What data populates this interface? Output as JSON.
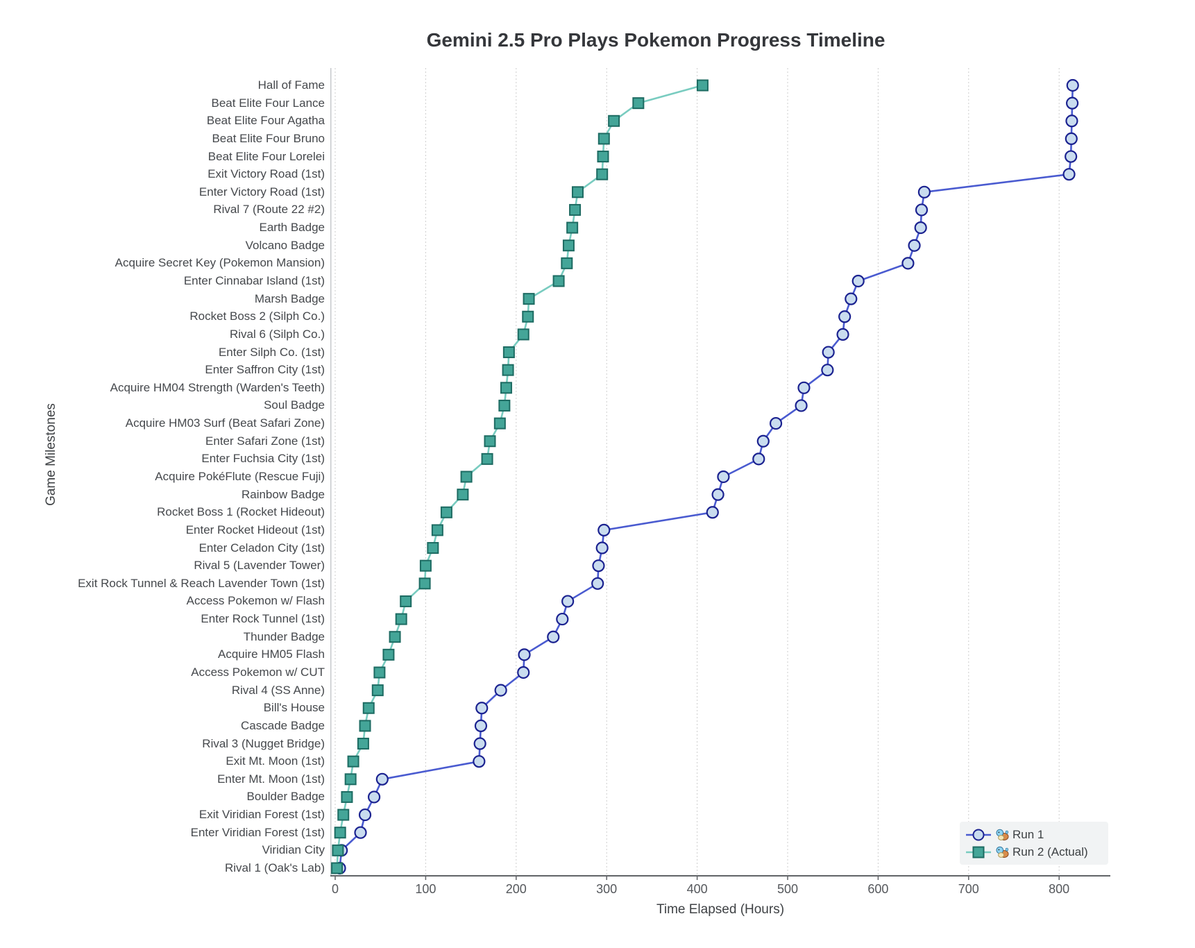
{
  "chart_data": {
    "type": "line",
    "title": "Gemini 2.5 Pro Plays Pokemon Progress Timeline",
    "xlabel": "Time Elapsed (Hours)",
    "ylabel": "Game Milestones",
    "x_ticks": [
      0,
      100,
      200,
      300,
      400,
      500,
      600,
      700,
      800
    ],
    "xlim": [
      -5,
      855
    ],
    "grid": "vertical-dashed",
    "legend_position": "lower right",
    "milestones_top_to_bottom": [
      "Hall of Fame",
      "Beat Elite Four Lance",
      "Beat Elite Four Agatha",
      "Beat Elite Four Bruno",
      "Beat Elite Four Lorelei",
      "Exit Victory Road (1st)",
      "Enter Victory Road (1st)",
      "Rival 7 (Route 22 #2)",
      "Earth Badge",
      "Volcano Badge",
      "Acquire Secret Key (Pokemon Mansion)",
      "Enter Cinnabar Island (1st)",
      "Marsh Badge",
      "Rocket Boss 2 (Silph Co.)",
      "Rival 6 (Silph Co.)",
      "Enter Silph Co. (1st)",
      "Enter Saffron City (1st)",
      "Acquire HM04 Strength (Warden's Teeth)",
      "Soul Badge",
      "Acquire HM03 Surf (Beat Safari Zone)",
      "Enter Safari Zone (1st)",
      "Enter Fuchsia City (1st)",
      "Acquire PokéFlute (Rescue Fuji)",
      "Rainbow Badge",
      "Rocket Boss 1 (Rocket Hideout)",
      "Enter Rocket Hideout (1st)",
      "Enter Celadon City (1st)",
      "Rival 5 (Lavender Tower)",
      "Exit Rock Tunnel & Reach Lavender Town (1st)",
      "Access Pokemon w/ Flash",
      "Enter Rock Tunnel (1st)",
      "Thunder Badge",
      "Acquire HM05 Flash",
      "Access Pokemon w/ CUT",
      "Rival 4 (SS Anne)",
      "Bill's House",
      "Cascade Badge",
      "Rival 3 (Nugget Bridge)",
      "Exit Mt. Moon (1st)",
      "Enter Mt. Moon (1st)",
      "Boulder Badge",
      "Exit Viridian Forest (1st)",
      "Enter Viridian Forest (1st)",
      "Viridian City",
      "Rival 1 (Oak's Lab)"
    ],
    "series": [
      {
        "name": "Run 1",
        "marker_shape": "circle",
        "line_color": "#4a5bd0",
        "marker_fill": "#c9dcef",
        "marker_stroke": "#1b2290",
        "hours_top_to_bottom": [
          815,
          814.5,
          814,
          813.5,
          813,
          811,
          651,
          648,
          647,
          640,
          633,
          578,
          570,
          563,
          561,
          545,
          544,
          518,
          515,
          487,
          473,
          468,
          429,
          423,
          417,
          297,
          295,
          291,
          290,
          257,
          251,
          241,
          209,
          208,
          183,
          162,
          161,
          160,
          159,
          52,
          43,
          33,
          28,
          7,
          5
        ]
      },
      {
        "name": "Run 2 (Actual)",
        "marker_shape": "square",
        "line_color": "#79ccc0",
        "marker_fill": "#44a598",
        "marker_stroke": "#1d6b62",
        "hours_top_to_bottom": [
          406,
          335,
          308,
          297,
          296,
          295,
          268,
          265,
          262,
          258,
          256,
          247,
          214,
          213,
          208,
          192,
          191,
          189,
          187,
          182,
          171,
          168,
          145,
          141,
          123,
          113,
          108,
          100,
          99,
          78,
          73,
          66,
          59,
          49,
          47,
          37,
          33,
          31,
          20,
          17,
          13,
          9,
          5.5,
          3,
          2
        ]
      }
    ]
  }
}
